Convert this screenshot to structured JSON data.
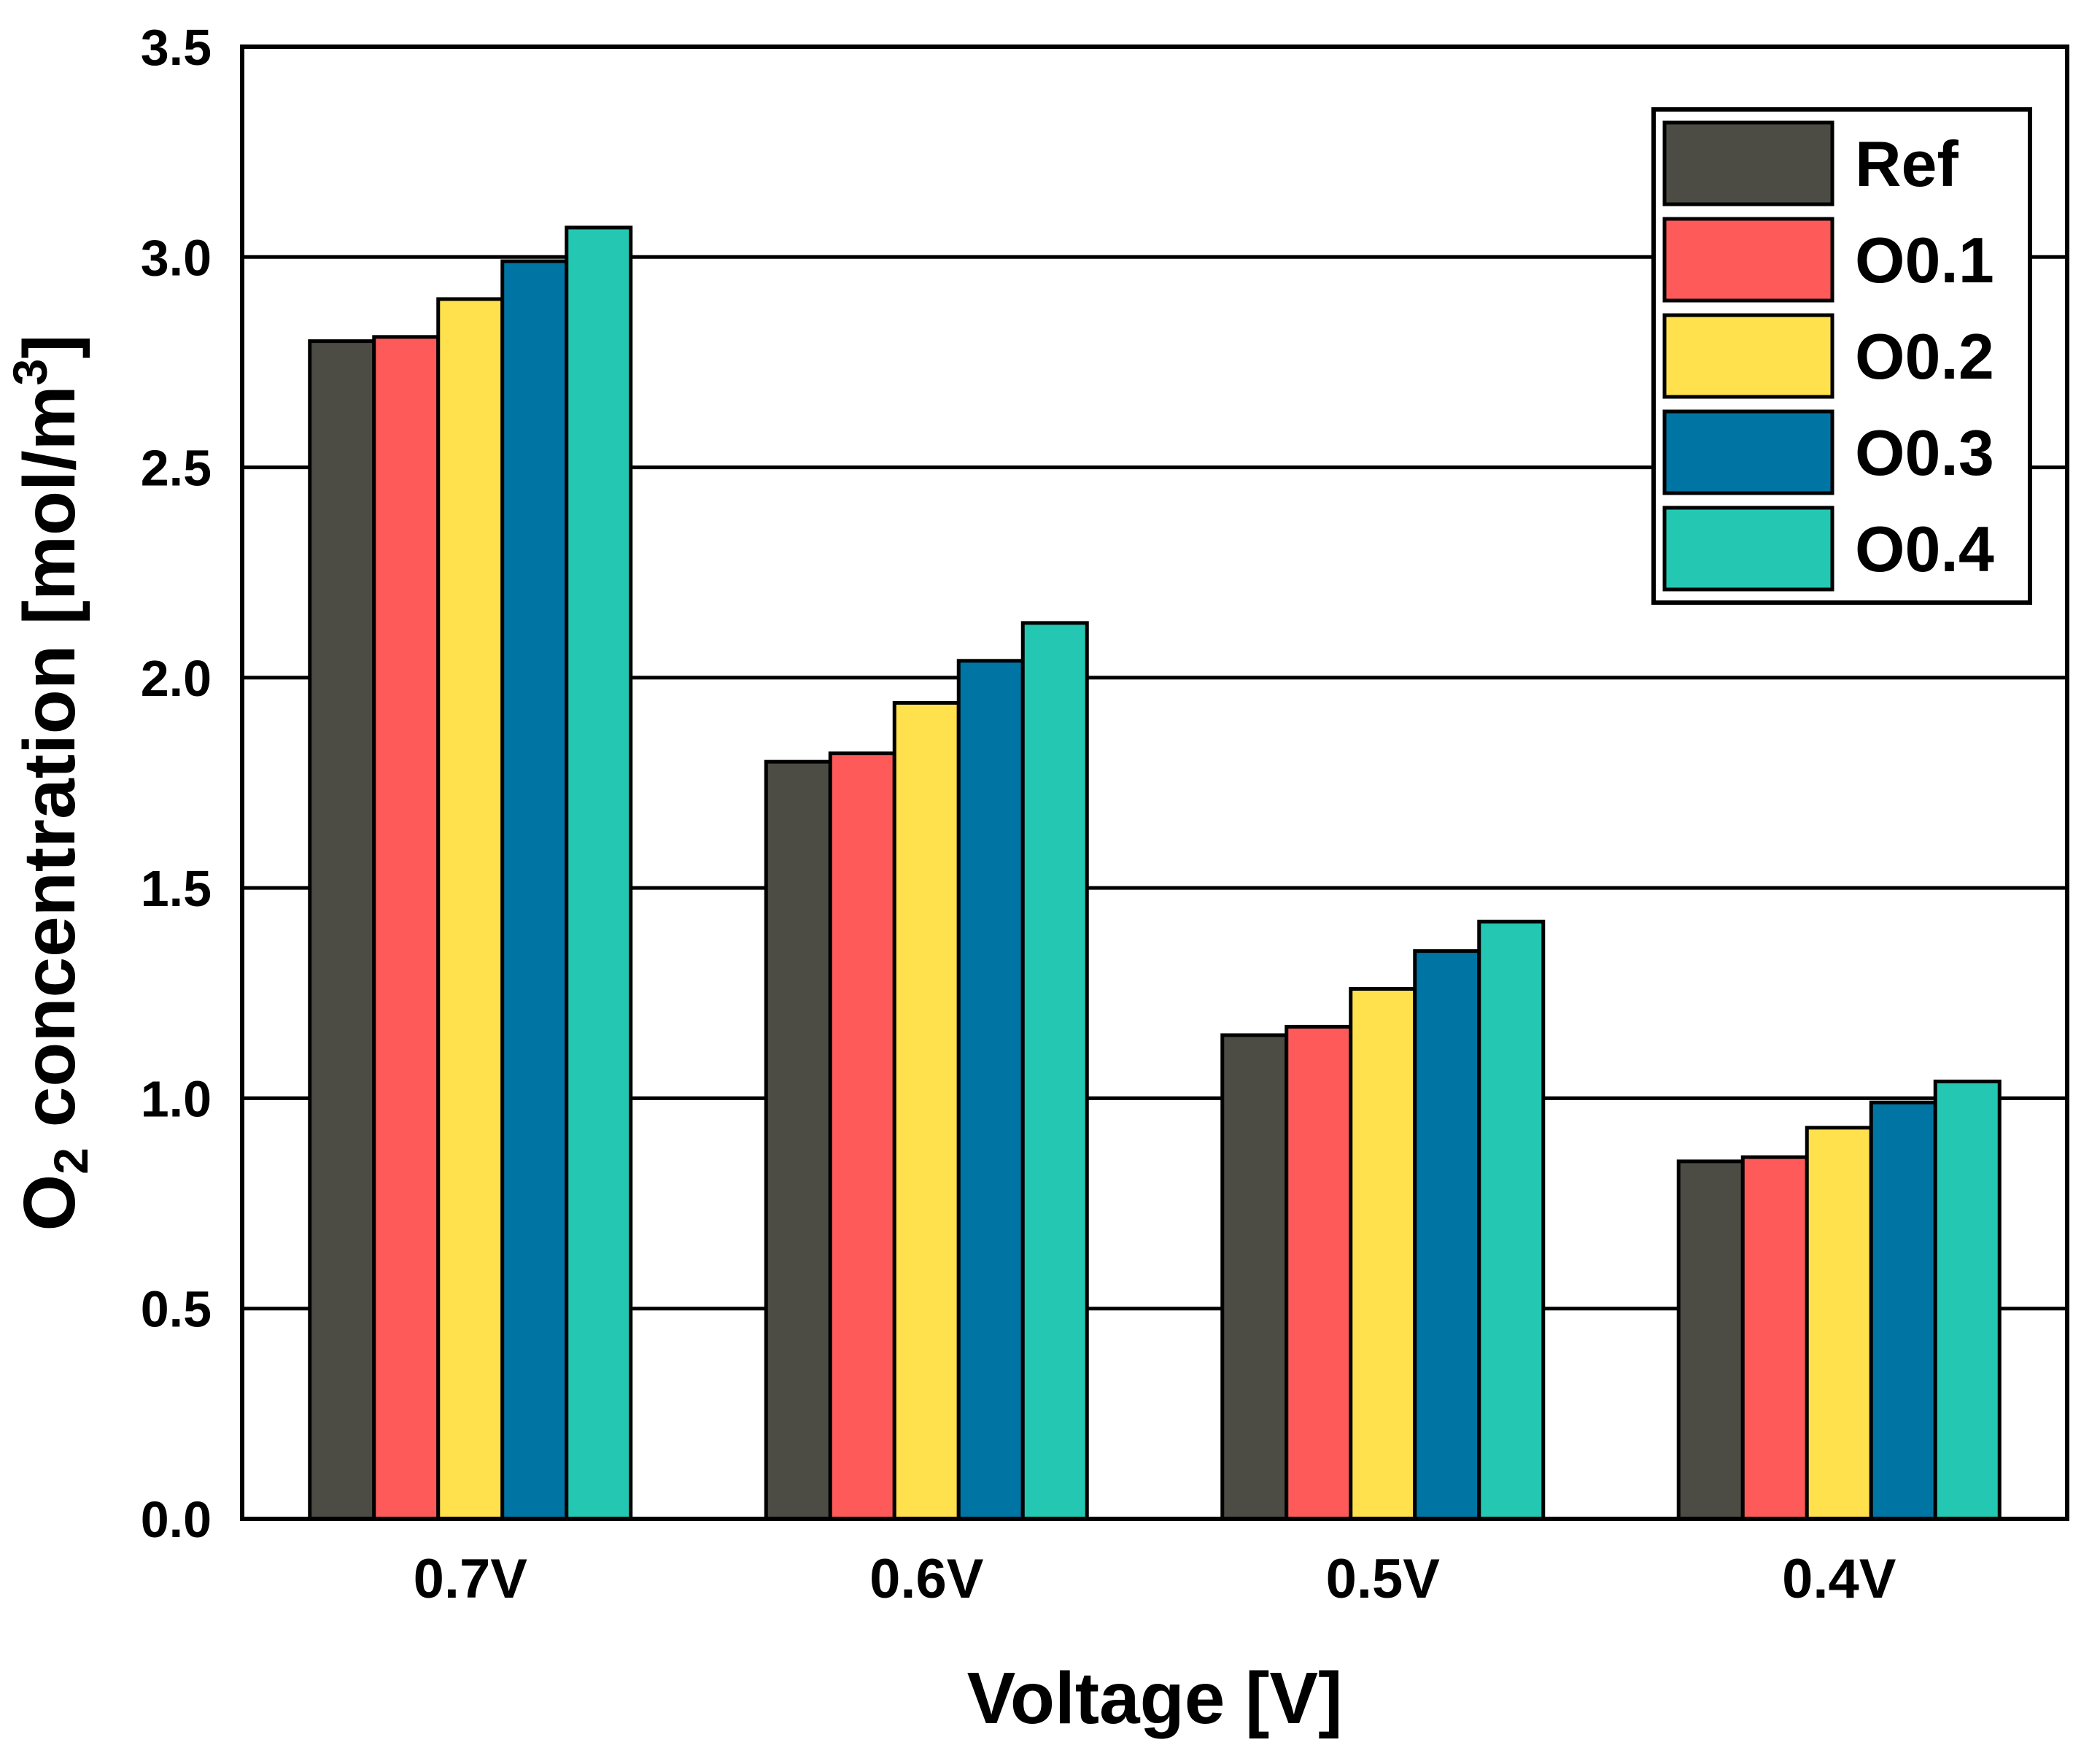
{
  "chart_data": {
    "type": "bar",
    "title": "",
    "xlabel": "Voltage [V]",
    "ylabel": {
      "prefix": "O",
      "subscript": "2",
      "middle": " concentration [mol/m",
      "superscript": "3",
      "suffix": "]"
    },
    "ylim": [
      0,
      3.5
    ],
    "yticks": [
      "0.0",
      "0.5",
      "1.0",
      "1.5",
      "2.0",
      "2.5",
      "3.0",
      "3.5"
    ],
    "grid": true,
    "legend_position": "top-right",
    "categories": [
      "0.7V",
      "0.6V",
      "0.5V",
      "0.4V"
    ],
    "series": [
      {
        "name": "Ref",
        "color": "#4d4c44",
        "values": [
          2.8,
          1.8,
          1.15,
          0.85
        ]
      },
      {
        "name": "O0.1",
        "color": "#ff5a5a",
        "values": [
          2.81,
          1.82,
          1.17,
          0.86
        ]
      },
      {
        "name": "O0.2",
        "color": "#ffe14d",
        "values": [
          2.9,
          1.94,
          1.26,
          0.93
        ]
      },
      {
        "name": "O0.3",
        "color": "#0075a3",
        "values": [
          2.99,
          2.04,
          1.35,
          0.99
        ]
      },
      {
        "name": "O0.4",
        "color": "#24c7b2",
        "values": [
          3.07,
          2.13,
          1.42,
          1.04
        ]
      }
    ]
  }
}
